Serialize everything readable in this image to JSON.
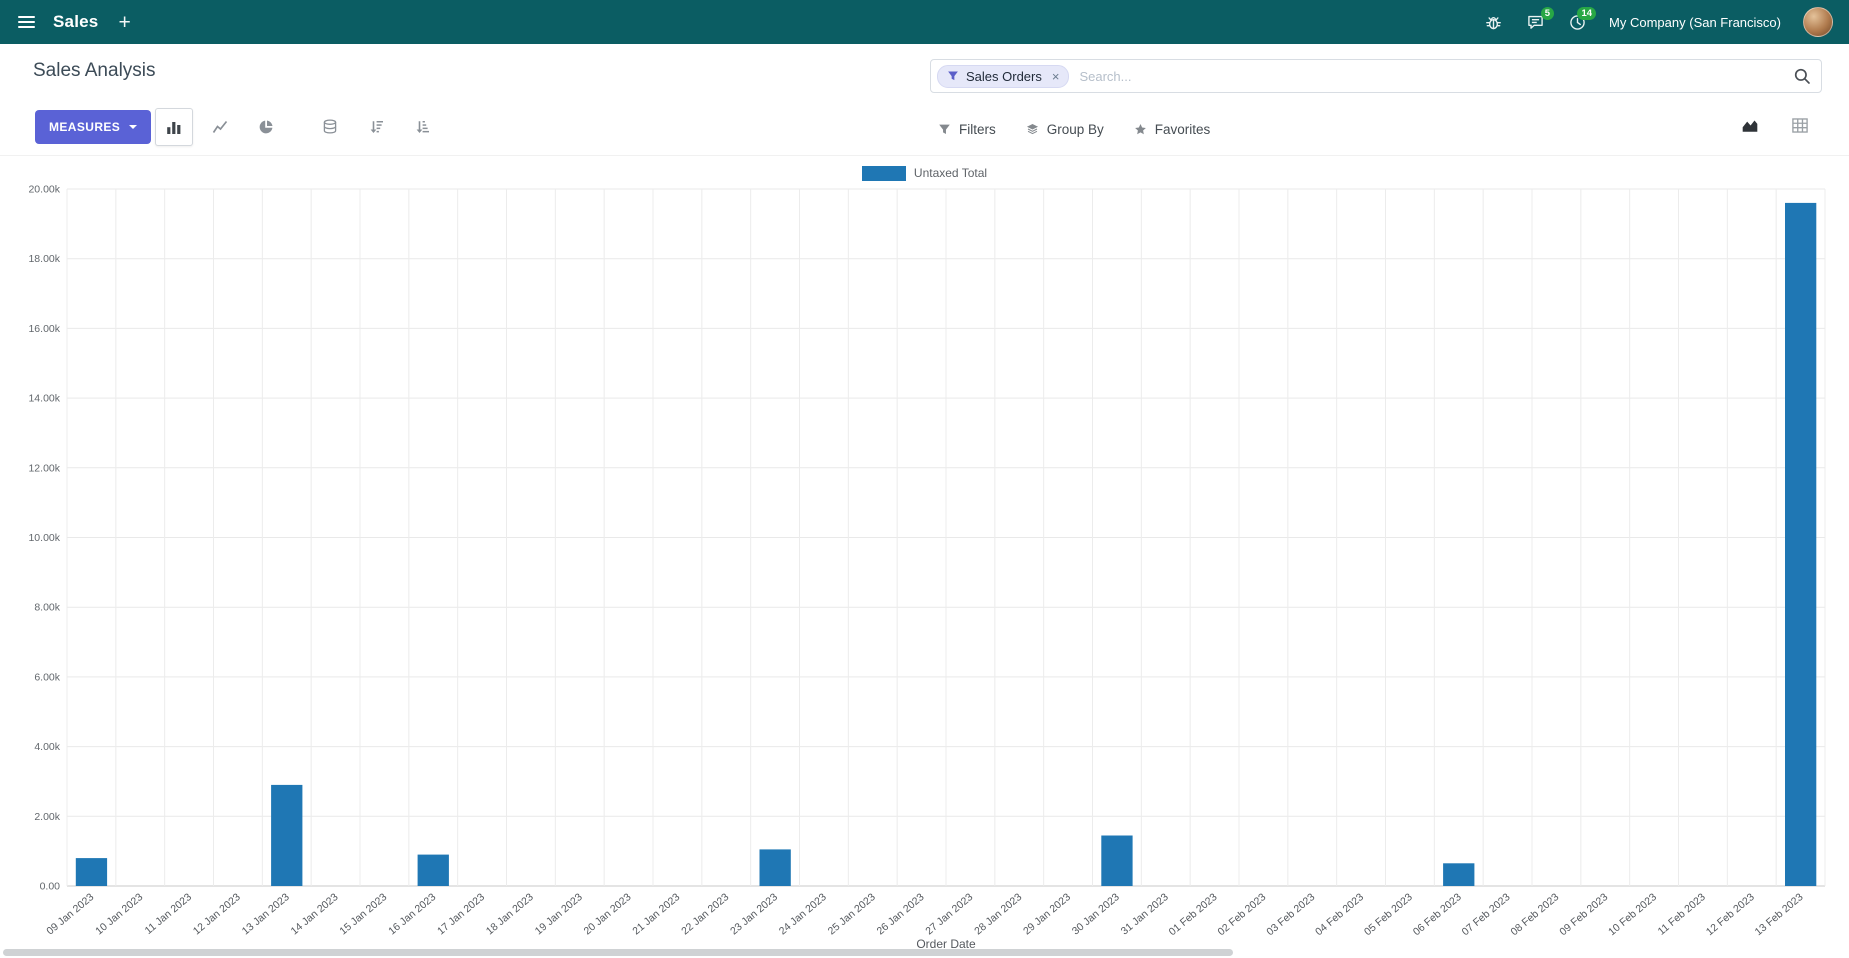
{
  "colors": {
    "navbar_bg": "#0b5d63",
    "accent": "#5a62d6",
    "bar": "#1f77b4",
    "badge": "#28a745"
  },
  "navbar": {
    "app_name": "Sales",
    "plus": "+",
    "messages_badge": "5",
    "activities_badge": "14",
    "company": "My Company (San Francisco)"
  },
  "control_panel": {
    "title": "Sales Analysis",
    "measures": "MEASURES",
    "filters": "Filters",
    "group_by": "Group By",
    "favorites": "Favorites",
    "search_facet": "Sales Orders",
    "facet_remove": "×",
    "search_placeholder": "Search..."
  },
  "icons": {
    "menu-icon": "hamburger ≡",
    "plus-icon": "+",
    "bug-icon": "bug",
    "messages-icon": "speech-bubble",
    "activities-icon": "clock",
    "filter-icon": "funnel",
    "group-by-icon": "layers",
    "favorites-icon": "star ★",
    "search-icon": "magnifier",
    "bar-chart-icon": "vertical-bars",
    "line-chart-icon": "polyline",
    "pie-chart-icon": "pie",
    "stacked-icon": "database-stack",
    "sort-desc-icon": "sort-amount-desc",
    "sort-asc-icon": "sort-amount-asc",
    "area-view-icon": "area-chart",
    "pivot-view-icon": "grid-table",
    "caret-down-icon": "▾",
    "close-icon": "×"
  },
  "chart_data": {
    "type": "bar",
    "title": "",
    "legend": [
      "Untaxed Total"
    ],
    "series_color": "#1f77b4",
    "categories": [
      "09 Jan 2023",
      "10 Jan 2023",
      "11 Jan 2023",
      "12 Jan 2023",
      "13 Jan 2023",
      "14 Jan 2023",
      "15 Jan 2023",
      "16 Jan 2023",
      "17 Jan 2023",
      "18 Jan 2023",
      "19 Jan 2023",
      "20 Jan 2023",
      "21 Jan 2023",
      "22 Jan 2023",
      "23 Jan 2023",
      "24 Jan 2023",
      "25 Jan 2023",
      "26 Jan 2023",
      "27 Jan 2023",
      "28 Jan 2023",
      "29 Jan 2023",
      "30 Jan 2023",
      "31 Jan 2023",
      "01 Feb 2023",
      "02 Feb 2023",
      "03 Feb 2023",
      "04 Feb 2023",
      "05 Feb 2023",
      "06 Feb 2023",
      "07 Feb 2023",
      "08 Feb 2023",
      "09 Feb 2023",
      "10 Feb 2023",
      "11 Feb 2023",
      "12 Feb 2023",
      "13 Feb 2023"
    ],
    "values": [
      800,
      0,
      0,
      0,
      2900,
      0,
      0,
      900,
      0,
      0,
      0,
      0,
      0,
      0,
      1050,
      0,
      0,
      0,
      0,
      0,
      0,
      1450,
      0,
      0,
      0,
      0,
      0,
      0,
      650,
      0,
      0,
      0,
      0,
      0,
      0,
      19600
    ],
    "xlabel": "Order Date",
    "ylabel": "",
    "ylim": [
      0,
      20000
    ],
    "y_tick_step": 2000,
    "y_tick_labels": [
      "0.00",
      "2.00k",
      "4.00k",
      "6.00k",
      "8.00k",
      "10.00k",
      "12.00k",
      "14.00k",
      "16.00k",
      "18.00k",
      "20.00k"
    ],
    "grid": true,
    "legend_position": "top-center"
  }
}
